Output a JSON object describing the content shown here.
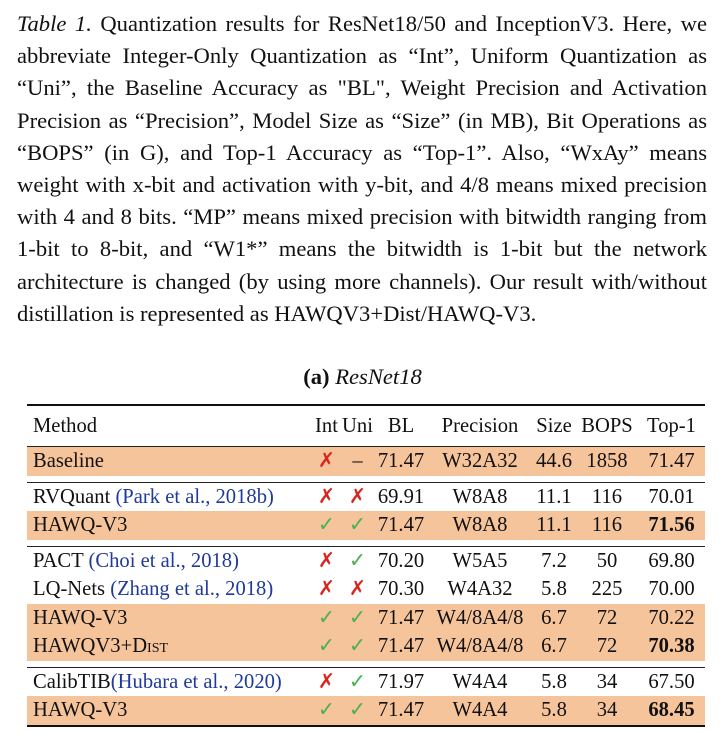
{
  "caption": {
    "label": "Table 1.",
    "text": " Quantization results for ResNet18/50 and InceptionV3. Here, we abbreviate Integer-Only Quantization as “Int”, Uniform Quantization as “Uni”, the Baseline Accuracy as \"BL\", Weight Precision and Activation Precision as “Precision”, Model Size as “Size” (in MB), Bit Operations as “BOPS” (in G), and Top-1 Accu­racy as “Top-1”. Also, “WxAy” means weight with x-bit and acti­vation with y-bit, and 4/8 means mixed precision with 4 and 8 bits. “MP” means mixed precision with bitwidth ranging from 1-bit to 8-bit, and “W1*” means the bitwidth is 1-bit but the network architec­ture is changed (by using more channels). Our result with/without distillation is represented as HAWQV3+Dist/HAWQ-V3."
  },
  "subcaption": {
    "prefix": "(a)",
    "network": "ResNet18"
  },
  "table": {
    "headers": {
      "method": "Method",
      "int": "Int",
      "uni": "Uni",
      "bl": "BL",
      "precision": "Precision",
      "size": "Size",
      "bops": "BOPS",
      "top1": "Top-1"
    },
    "rows": [
      {
        "method": "Baseline",
        "cite": "",
        "int": "✗",
        "uni": "–",
        "bl": "71.47",
        "precision": "W32A32",
        "size": "44.6",
        "bops": "1858",
        "top1": "71.47"
      },
      {
        "method": "RVQuant ",
        "cite": "(Park et al., 2018b)",
        "int": "✗",
        "uni": "✗",
        "bl": "69.91",
        "precision": "W8A8",
        "size": "11.1",
        "bops": "116",
        "top1": "70.01"
      },
      {
        "method": "HAWQ-V3",
        "cite": "",
        "int": "✓",
        "uni": "✓",
        "bl": "71.47",
        "precision": "W8A8",
        "size": "11.1",
        "bops": "116",
        "top1": "71.56"
      },
      {
        "method": "PACT ",
        "cite": "(Choi et al., 2018)",
        "int": "✗",
        "uni": "✓",
        "bl": "70.20",
        "precision": "W5A5",
        "size": "7.2",
        "bops": "50",
        "top1": "69.80"
      },
      {
        "method": "LQ-Nets ",
        "cite": "(Zhang et al., 2018)",
        "int": "✗",
        "uni": "✗",
        "bl": "70.30",
        "precision": "W4A32",
        "size": "5.8",
        "bops": "225",
        "top1": "70.00"
      },
      {
        "method": "HAWQ-V3",
        "cite": "",
        "int": "✓",
        "uni": "✓",
        "bl": "71.47",
        "precision": "W4/8A4/8",
        "size": "6.7",
        "bops": "72",
        "top1": "70.22"
      },
      {
        "method": "HAWQV3+",
        "method_sc": "Dist",
        "cite": "",
        "int": "✓",
        "uni": "✓",
        "bl": "71.47",
        "precision": "W4/8A4/8",
        "size": "6.7",
        "bops": "72",
        "top1": "70.38"
      },
      {
        "method": "CalibTIB",
        "cite": "(Hubara et al., 2020)",
        "int": "✗",
        "uni": "✓",
        "bl": "71.97",
        "precision": "W4A4",
        "size": "5.8",
        "bops": "34",
        "top1": "67.50"
      },
      {
        "method": "HAWQ-V3",
        "cite": "",
        "int": "✓",
        "uni": "✓",
        "bl": "71.47",
        "precision": "W4A4",
        "size": "5.8",
        "bops": "34",
        "top1": "68.45"
      }
    ]
  },
  "colors": {
    "highlight": "#f6c49b",
    "cross": "#d6261f",
    "check": "#4caf50",
    "citation": "#1f3a9a"
  }
}
